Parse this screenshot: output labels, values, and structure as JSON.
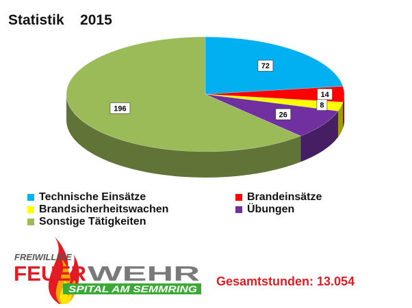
{
  "chart_data": {
    "type": "pie",
    "title": "Statistik    2015",
    "categories": [
      "Technische Einsätze",
      "Brandeinsätze",
      "Brandsicherheitswachen",
      "Übungen",
      "Sonstige Tätigkeiten"
    ],
    "values": [
      72,
      14,
      8,
      26,
      196
    ],
    "colors": [
      "#00b0f0",
      "#ff0000",
      "#ffff00",
      "#7030a0",
      "#9bbb59"
    ],
    "legend_position": "bottom"
  },
  "logo": {
    "line1": "FREIWILLIGE",
    "word_a": "FEUER",
    "word_b": "WEHR",
    "line3": "SPITAL AM SEMMRING",
    "flame_colors": [
      "#e31b23",
      "#f7a600",
      "#ffe500"
    ]
  },
  "total": {
    "text": "Gesamtstunden:  13.054"
  }
}
